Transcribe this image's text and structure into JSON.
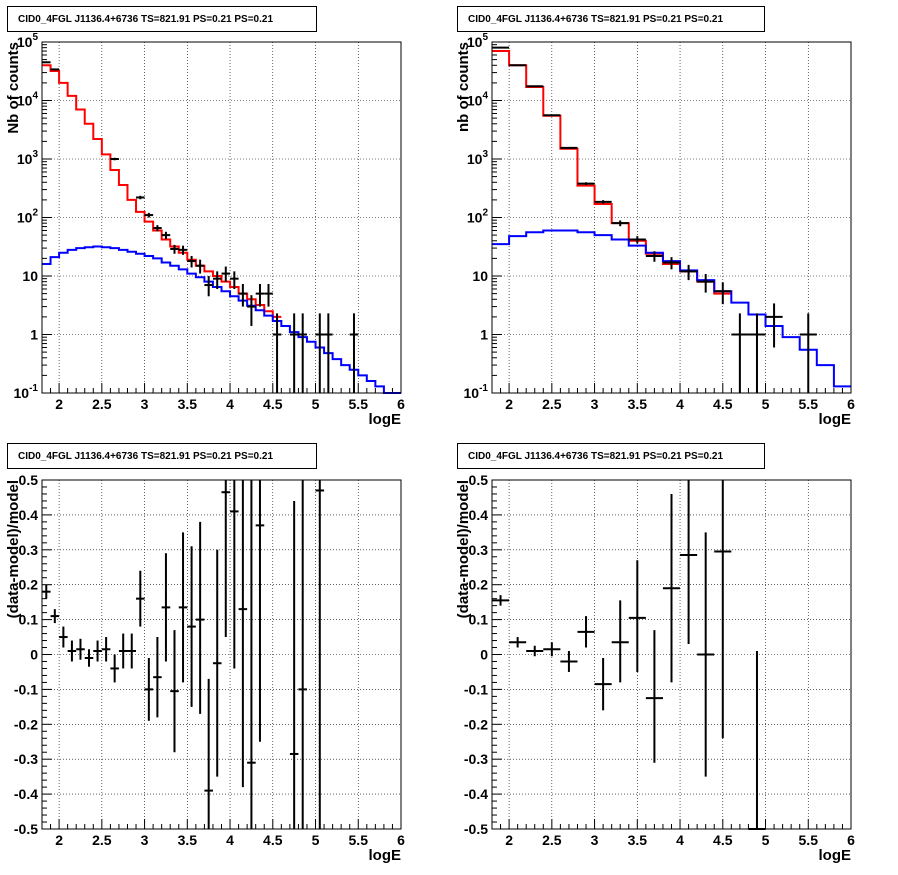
{
  "chart_data": [
    {
      "type": "histogram",
      "title": "CID0_4FGL J1136.4+6736 TS=821.91 PS=0.21 PS=0.21",
      "xlabel": "logE",
      "ylabel": "Nb of counts",
      "xlim": [
        1.8,
        6.0
      ],
      "ylim": [
        0.1,
        100000
      ],
      "yscale": "log",
      "grid": true,
      "x_ticks": [
        "2",
        "2.5",
        "3",
        "3.5",
        "4",
        "4.5",
        "5",
        "5.5",
        "6"
      ],
      "y_ticks": [
        {
          "v": 0.1,
          "t": "10^-1"
        },
        {
          "v": 1,
          "t": "1"
        },
        {
          "v": 10,
          "t": "10"
        },
        {
          "v": 100,
          "t": "10^2"
        },
        {
          "v": 1000,
          "t": "10^3"
        },
        {
          "v": 10000,
          "t": "10^4"
        },
        {
          "v": 100000,
          "t": "10^5"
        }
      ],
      "bin_width": 0.1,
      "series": [
        {
          "role": "total-model",
          "color": "#ff0000",
          "x_left": [
            1.8,
            1.9,
            2.0,
            2.1,
            2.2,
            2.3,
            2.4,
            2.5,
            2.6,
            2.7,
            2.8,
            2.9,
            3.0,
            3.1,
            3.2,
            3.3,
            3.4,
            3.5,
            3.6,
            3.7,
            3.8,
            3.9,
            4.0,
            4.1,
            4.2,
            4.3,
            4.4,
            4.5
          ],
          "values": [
            40000,
            32000,
            20000,
            12000,
            7000,
            4000,
            2200,
            1200,
            650,
            360,
            200,
            125,
            85,
            60,
            42,
            32,
            25,
            19,
            15,
            12,
            10,
            8,
            6.5,
            5,
            4,
            3.2,
            2.5,
            2
          ]
        },
        {
          "role": "background-model",
          "color": "#0000ff",
          "x_left": [
            1.8,
            1.9,
            2.0,
            2.1,
            2.2,
            2.3,
            2.4,
            2.5,
            2.6,
            2.7,
            2.8,
            2.9,
            3.0,
            3.1,
            3.2,
            3.3,
            3.4,
            3.5,
            3.6,
            3.7,
            3.8,
            3.9,
            4.0,
            4.1,
            4.2,
            4.3,
            4.4,
            4.5,
            4.6,
            4.7,
            4.8,
            4.9,
            5.0,
            5.1,
            5.2,
            5.3,
            5.4,
            5.5,
            5.6,
            5.7,
            5.8,
            5.9
          ],
          "values": [
            16,
            21,
            25,
            28,
            30,
            31,
            32,
            31,
            30,
            28,
            26,
            24,
            22,
            20,
            17,
            15,
            13,
            11,
            9.5,
            8,
            6.5,
            5.5,
            4.5,
            3.8,
            3.1,
            2.6,
            2.1,
            1.7,
            1.4,
            1.1,
            0.9,
            0.75,
            0.6,
            0.48,
            0.38,
            0.3,
            0.25,
            0.2,
            0.16,
            0.13,
            0.1,
            0.09
          ]
        }
      ],
      "data_points": [
        {
          "x": 1.85,
          "y": 45000,
          "ylo": 44500,
          "yhi": 45500
        },
        {
          "x": 1.95,
          "y": 34000,
          "ylo": 33600,
          "yhi": 34400
        },
        {
          "x": 2.65,
          "y": 1000,
          "ylo": 950,
          "yhi": 1050
        },
        {
          "x": 2.95,
          "y": 220,
          "ylo": 205,
          "yhi": 235
        },
        {
          "x": 3.05,
          "y": 110,
          "ylo": 100,
          "yhi": 120
        },
        {
          "x": 3.15,
          "y": 66,
          "ylo": 58,
          "yhi": 74
        },
        {
          "x": 3.25,
          "y": 50,
          "ylo": 43,
          "yhi": 57
        },
        {
          "x": 3.35,
          "y": 29,
          "ylo": 24,
          "yhi": 34
        },
        {
          "x": 3.45,
          "y": 28,
          "ylo": 23,
          "yhi": 33
        },
        {
          "x": 3.55,
          "y": 18,
          "ylo": 14,
          "yhi": 22
        },
        {
          "x": 3.65,
          "y": 15,
          "ylo": 11,
          "yhi": 19
        },
        {
          "x": 3.75,
          "y": 7,
          "ylo": 4.5,
          "yhi": 10
        },
        {
          "x": 3.85,
          "y": 9,
          "ylo": 6,
          "yhi": 12
        },
        {
          "x": 3.95,
          "y": 11,
          "ylo": 8,
          "yhi": 14.5
        },
        {
          "x": 4.05,
          "y": 9,
          "ylo": 6,
          "yhi": 12
        },
        {
          "x": 4.15,
          "y": 5,
          "ylo": 3,
          "yhi": 7.3
        },
        {
          "x": 4.25,
          "y": 3,
          "ylo": 1.4,
          "yhi": 4.7
        },
        {
          "x": 4.35,
          "y": 5,
          "ylo": 3,
          "yhi": 7.3
        },
        {
          "x": 4.45,
          "y": 5,
          "ylo": 3,
          "yhi": 7.3
        },
        {
          "x": 4.55,
          "y": 1,
          "ylo": 0.1,
          "yhi": 2.3
        },
        {
          "x": 4.75,
          "y": 1,
          "ylo": 0.1,
          "yhi": 2.3
        },
        {
          "x": 4.85,
          "y": 1,
          "ylo": 0.1,
          "yhi": 2.3
        },
        {
          "x": 5.05,
          "y": 1,
          "ylo": 0.1,
          "yhi": 2.3
        },
        {
          "x": 5.15,
          "y": 1,
          "ylo": 0.1,
          "yhi": 2.3
        },
        {
          "x": 5.45,
          "y": 1,
          "ylo": 0.1,
          "yhi": 2.3
        }
      ]
    },
    {
      "type": "histogram",
      "title": "CID0_4FGL J1136.4+6736 TS=821.91 PS=0.21 PS=0.21",
      "xlabel": "logE",
      "ylabel": "nb of counts",
      "xlim": [
        1.8,
        6.0
      ],
      "ylim": [
        0.1,
        100000
      ],
      "yscale": "log",
      "grid": true,
      "x_ticks": [
        "2",
        "2.5",
        "3",
        "3.5",
        "4",
        "4.5",
        "5",
        "5.5",
        "6"
      ],
      "y_ticks": [
        {
          "v": 0.1,
          "t": "10^-1"
        },
        {
          "v": 1,
          "t": "1"
        },
        {
          "v": 10,
          "t": "10"
        },
        {
          "v": 100,
          "t": "10^2"
        },
        {
          "v": 1000,
          "t": "10^3"
        },
        {
          "v": 10000,
          "t": "10^4"
        },
        {
          "v": 100000,
          "t": "10^5"
        }
      ],
      "bin_width": 0.2,
      "series": [
        {
          "role": "total-model",
          "color": "#ff0000",
          "x_left": [
            1.8,
            2.0,
            2.2,
            2.4,
            2.6,
            2.8,
            3.0,
            3.2,
            3.4,
            3.6,
            3.8,
            4.0,
            4.2,
            4.4
          ],
          "values": [
            70000,
            40000,
            17000,
            5500,
            1500,
            350,
            170,
            80,
            40,
            24,
            16,
            12,
            8,
            5
          ]
        },
        {
          "role": "background-model",
          "color": "#0000ff",
          "x_left": [
            1.8,
            2.0,
            2.2,
            2.4,
            2.6,
            2.8,
            3.0,
            3.2,
            3.4,
            3.6,
            3.8,
            4.0,
            4.2,
            4.4,
            4.6,
            4.8,
            5.0,
            5.2,
            5.4,
            5.6,
            5.8
          ],
          "values": [
            35,
            48,
            56,
            60,
            60,
            56,
            50,
            42,
            33,
            25,
            18,
            12.5,
            8.5,
            5.5,
            3.5,
            2.2,
            1.4,
            0.9,
            0.55,
            0.3,
            0.13
          ]
        }
      ],
      "data_points": [
        {
          "x": 1.9,
          "y": 80000,
          "ylo": 79500,
          "yhi": 80500
        },
        {
          "x": 2.1,
          "y": 40000,
          "ylo": 39600,
          "yhi": 40400
        },
        {
          "x": 2.3,
          "y": 17500,
          "ylo": 17300,
          "yhi": 17700
        },
        {
          "x": 2.5,
          "y": 5600,
          "ylo": 5500,
          "yhi": 5700
        },
        {
          "x": 2.7,
          "y": 1550,
          "ylo": 1500,
          "yhi": 1600
        },
        {
          "x": 2.9,
          "y": 380,
          "ylo": 360,
          "yhi": 400
        },
        {
          "x": 3.1,
          "y": 185,
          "ylo": 172,
          "yhi": 198
        },
        {
          "x": 3.3,
          "y": 80,
          "ylo": 71,
          "yhi": 89
        },
        {
          "x": 3.5,
          "y": 42,
          "ylo": 36,
          "yhi": 48
        },
        {
          "x": 3.7,
          "y": 22,
          "ylo": 17.5,
          "yhi": 26.5
        },
        {
          "x": 3.9,
          "y": 17,
          "ylo": 13,
          "yhi": 21
        },
        {
          "x": 4.1,
          "y": 12,
          "ylo": 8.5,
          "yhi": 15.5
        },
        {
          "x": 4.3,
          "y": 8,
          "ylo": 5.2,
          "yhi": 10.8
        },
        {
          "x": 4.5,
          "y": 5.5,
          "ylo": 3.3,
          "yhi": 7.8
        },
        {
          "x": 4.7,
          "y": 1,
          "ylo": 0.1,
          "yhi": 2.3
        },
        {
          "x": 4.9,
          "y": 1,
          "ylo": 0.1,
          "yhi": 2.3
        },
        {
          "x": 5.1,
          "y": 2,
          "ylo": 0.6,
          "yhi": 3.4
        },
        {
          "x": 5.5,
          "y": 1,
          "ylo": 0.1,
          "yhi": 2.3
        }
      ]
    },
    {
      "type": "scatter",
      "title": "CID0_4FGL J1136.4+6736 TS=821.91 PS=0.21 PS=0.21",
      "xlabel": "logE",
      "ylabel": "(data-model)/model",
      "xlim": [
        1.8,
        6.0
      ],
      "ylim": [
        -0.5,
        0.5
      ],
      "grid": true,
      "x_ticks": [
        "2",
        "2.5",
        "3",
        "3.5",
        "4",
        "4.5",
        "5",
        "5.5",
        "6"
      ],
      "y_ticks": [
        "-0.5",
        "-0.4",
        "-0.3",
        "-0.2",
        "-0.1",
        "0",
        "0.1",
        "0.2",
        "0.3",
        "0.4",
        "0.5"
      ],
      "bin_width": 0.1,
      "points": [
        {
          "x": 1.85,
          "y": 0.18,
          "ylo": 0.16,
          "yhi": 0.2
        },
        {
          "x": 1.95,
          "y": 0.11,
          "ylo": 0.09,
          "yhi": 0.13
        },
        {
          "x": 2.05,
          "y": 0.05,
          "ylo": 0.02,
          "yhi": 0.08
        },
        {
          "x": 2.15,
          "y": 0.01,
          "ylo": -0.02,
          "yhi": 0.04
        },
        {
          "x": 2.25,
          "y": 0.015,
          "ylo": -0.015,
          "yhi": 0.045
        },
        {
          "x": 2.35,
          "y": -0.01,
          "ylo": -0.035,
          "yhi": 0.015
        },
        {
          "x": 2.45,
          "y": 0.01,
          "ylo": -0.02,
          "yhi": 0.04
        },
        {
          "x": 2.55,
          "y": 0.015,
          "ylo": -0.02,
          "yhi": 0.05
        },
        {
          "x": 2.65,
          "y": -0.04,
          "ylo": -0.08,
          "yhi": 0.0
        },
        {
          "x": 2.75,
          "y": 0.01,
          "ylo": -0.04,
          "yhi": 0.06
        },
        {
          "x": 2.85,
          "y": 0.01,
          "ylo": -0.04,
          "yhi": 0.06
        },
        {
          "x": 2.95,
          "y": 0.16,
          "ylo": 0.08,
          "yhi": 0.24
        },
        {
          "x": 3.05,
          "y": -0.1,
          "ylo": -0.19,
          "yhi": -0.01
        },
        {
          "x": 3.15,
          "y": -0.065,
          "ylo": -0.18,
          "yhi": 0.05
        },
        {
          "x": 3.25,
          "y": 0.135,
          "ylo": -0.02,
          "yhi": 0.29
        },
        {
          "x": 3.35,
          "y": -0.105,
          "ylo": -0.28,
          "yhi": 0.07
        },
        {
          "x": 3.45,
          "y": 0.135,
          "ylo": -0.08,
          "yhi": 0.35
        },
        {
          "x": 3.55,
          "y": 0.08,
          "ylo": -0.15,
          "yhi": 0.31
        },
        {
          "x": 3.65,
          "y": 0.1,
          "ylo": -0.17,
          "yhi": 0.38
        },
        {
          "x": 3.75,
          "y": -0.39,
          "ylo": -0.5,
          "yhi": -0.07
        },
        {
          "x": 3.85,
          "y": -0.025,
          "ylo": -0.35,
          "yhi": 0.3
        },
        {
          "x": 3.95,
          "y": 0.465,
          "ylo": 0.05,
          "yhi": 0.5
        },
        {
          "x": 4.05,
          "y": 0.41,
          "ylo": -0.04,
          "yhi": 0.5
        },
        {
          "x": 4.15,
          "y": 0.13,
          "ylo": -0.38,
          "yhi": 0.5
        },
        {
          "x": 4.25,
          "y": -0.31,
          "ylo": -0.5,
          "yhi": 0.5
        },
        {
          "x": 4.35,
          "y": 0.37,
          "ylo": -0.25,
          "yhi": 0.5
        },
        {
          "x": 4.75,
          "y": -0.285,
          "ylo": -0.5,
          "yhi": 0.44
        },
        {
          "x": 4.85,
          "y": -0.1,
          "ylo": -0.5,
          "yhi": 0.5
        },
        {
          "x": 5.05,
          "y": 0.47,
          "ylo": -0.5,
          "yhi": 0.5
        }
      ]
    },
    {
      "type": "scatter",
      "title": "CID0_4FGL J1136.4+6736 TS=821.91 PS=0.21 PS=0.21",
      "xlabel": "logE",
      "ylabel": "(data-model)/model",
      "xlim": [
        1.8,
        6.0
      ],
      "ylim": [
        -0.5,
        0.5
      ],
      "grid": true,
      "x_ticks": [
        "2",
        "2.5",
        "3",
        "3.5",
        "4",
        "4.5",
        "5",
        "5.5",
        "6"
      ],
      "y_ticks": [
        "-0.5",
        "-0.4",
        "-0.3",
        "-0.2",
        "-0.1",
        "0",
        "0.1",
        "0.2",
        "0.3",
        "0.4",
        "0.5"
      ],
      "bin_width": 0.2,
      "points": [
        {
          "x": 1.9,
          "y": 0.155,
          "ylo": 0.14,
          "yhi": 0.17
        },
        {
          "x": 2.1,
          "y": 0.035,
          "ylo": 0.02,
          "yhi": 0.05
        },
        {
          "x": 2.3,
          "y": 0.01,
          "ylo": -0.005,
          "yhi": 0.025
        },
        {
          "x": 2.5,
          "y": 0.015,
          "ylo": -0.005,
          "yhi": 0.035
        },
        {
          "x": 2.7,
          "y": -0.02,
          "ylo": -0.05,
          "yhi": 0.01
        },
        {
          "x": 2.9,
          "y": 0.065,
          "ylo": 0.02,
          "yhi": 0.11
        },
        {
          "x": 3.1,
          "y": -0.085,
          "ylo": -0.16,
          "yhi": -0.01
        },
        {
          "x": 3.3,
          "y": 0.035,
          "ylo": -0.08,
          "yhi": 0.155
        },
        {
          "x": 3.5,
          "y": 0.105,
          "ylo": -0.05,
          "yhi": 0.27
        },
        {
          "x": 3.7,
          "y": -0.125,
          "ylo": -0.31,
          "yhi": 0.07
        },
        {
          "x": 3.9,
          "y": 0.19,
          "ylo": -0.08,
          "yhi": 0.46
        },
        {
          "x": 4.1,
          "y": 0.285,
          "ylo": 0.03,
          "yhi": 0.5
        },
        {
          "x": 4.3,
          "y": 0.0,
          "ylo": -0.35,
          "yhi": 0.35
        },
        {
          "x": 4.5,
          "y": 0.295,
          "ylo": -0.24,
          "yhi": 0.5
        },
        {
          "x": 4.9,
          "y": -0.5,
          "ylo": -0.5,
          "yhi": 0.01
        }
      ]
    }
  ]
}
